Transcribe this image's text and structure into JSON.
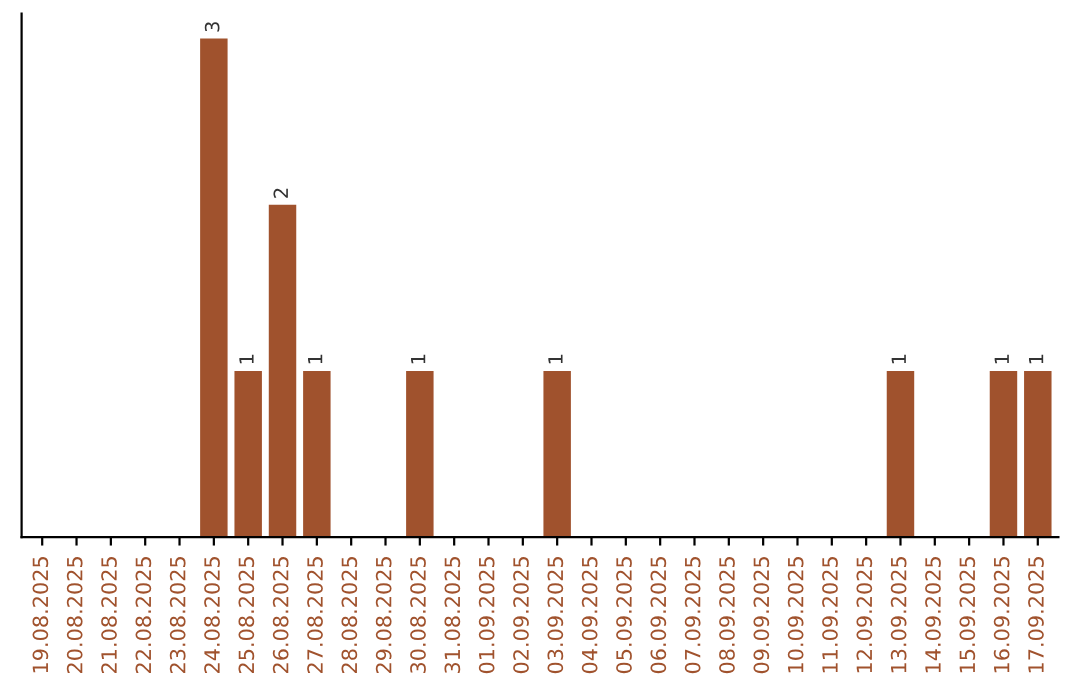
{
  "chart_data": {
    "type": "bar",
    "categories": [
      "19.08.2025",
      "20.08.2025",
      "21.08.2025",
      "22.08.2025",
      "23.08.2025",
      "24.08.2025",
      "25.08.2025",
      "26.08.2025",
      "27.08.2025",
      "28.08.2025",
      "29.08.2025",
      "30.08.2025",
      "31.08.2025",
      "01.09.2025",
      "02.09.2025",
      "03.09.2025",
      "04.09.2025",
      "05.09.2025",
      "06.09.2025",
      "07.09.2025",
      "08.09.2025",
      "09.09.2025",
      "10.09.2025",
      "11.09.2025",
      "12.09.2025",
      "13.09.2025",
      "14.09.2025",
      "15.09.2025",
      "16.09.2025",
      "17.09.2025"
    ],
    "values": [
      0,
      0,
      0,
      0,
      0,
      3,
      1,
      2,
      1,
      0,
      0,
      1,
      0,
      0,
      0,
      1,
      0,
      0,
      0,
      0,
      0,
      0,
      0,
      0,
      0,
      1,
      0,
      0,
      1,
      1
    ],
    "value_labels": [
      null,
      null,
      null,
      null,
      null,
      "3",
      "1",
      "2",
      "1",
      null,
      null,
      "1",
      null,
      null,
      null,
      "1",
      null,
      null,
      null,
      null,
      null,
      null,
      null,
      null,
      null,
      "1",
      null,
      null,
      "1",
      "1"
    ],
    "color": "#a0522d",
    "tick_labels": "x"
  }
}
